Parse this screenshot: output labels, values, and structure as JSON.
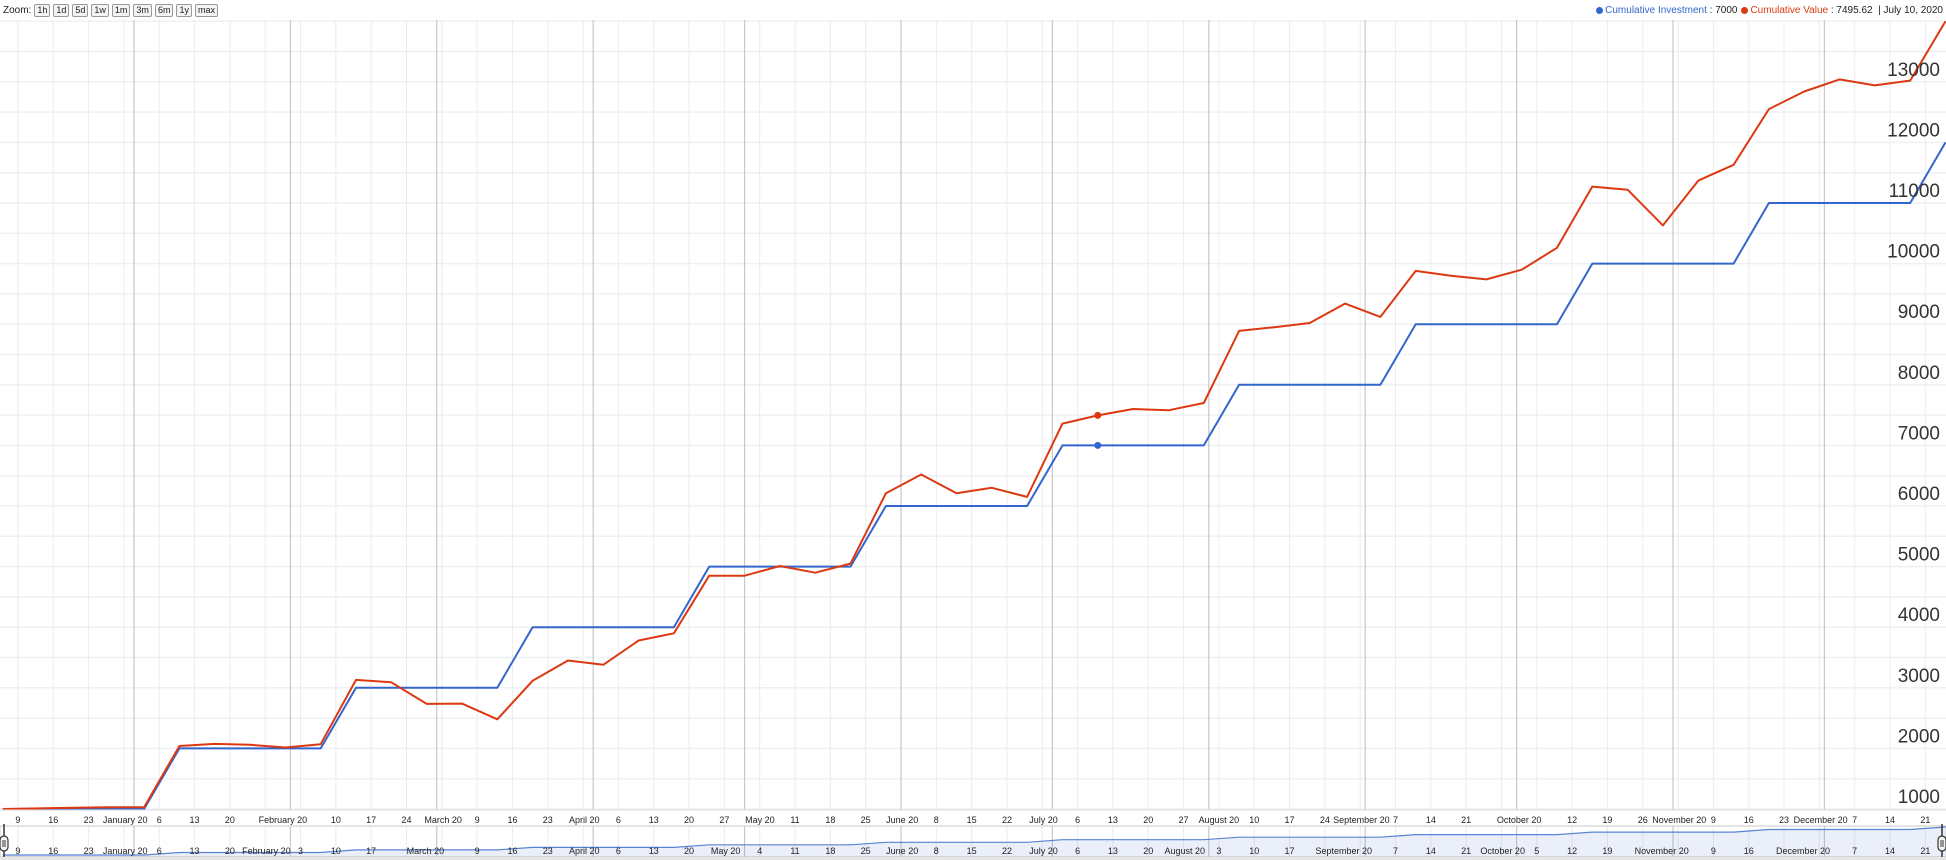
{
  "toolbar": {
    "zoom_label": "Zoom:",
    "zoom_buttons": [
      "1h",
      "1d",
      "5d",
      "1w",
      "1m",
      "3m",
      "6m",
      "1y",
      "max"
    ]
  },
  "legend": {
    "series": [
      {
        "name": "Cumulative Investment",
        "value": " : 7000",
        "color": "#3366cc"
      },
      {
        "name": "Cumulative Value",
        "value": " : 7495.62",
        "color": "#dc3912"
      }
    ],
    "date": "  | July 10, 2020"
  },
  "chart_data": {
    "type": "line",
    "title": "",
    "xlabel": "",
    "ylabel": "",
    "highlighted_date": "2020-07-10",
    "ylim": [
      1000,
      14000
    ],
    "grid": true,
    "y_ticks": [
      "1000",
      "2000",
      "3000",
      "4000",
      "5000",
      "6000",
      "7000",
      "8000",
      "9000",
      "10000",
      "11000",
      "12000",
      "13000"
    ],
    "x": [
      "2019-12-06",
      "2019-12-13",
      "2019-12-20",
      "2019-12-27",
      "2020-01-03",
      "2020-01-10",
      "2020-01-17",
      "2020-01-24",
      "2020-01-31",
      "2020-02-07",
      "2020-02-14",
      "2020-02-21",
      "2020-02-28",
      "2020-03-06",
      "2020-03-13",
      "2020-03-20",
      "2020-03-27",
      "2020-04-03",
      "2020-04-10",
      "2020-04-17",
      "2020-04-24",
      "2020-05-01",
      "2020-05-08",
      "2020-05-15",
      "2020-05-22",
      "2020-05-29",
      "2020-06-05",
      "2020-06-12",
      "2020-06-19",
      "2020-06-26",
      "2020-07-03",
      "2020-07-10",
      "2020-07-17",
      "2020-07-24",
      "2020-07-31",
      "2020-08-07",
      "2020-08-14",
      "2020-08-21",
      "2020-08-28",
      "2020-09-04",
      "2020-09-11",
      "2020-09-18",
      "2020-09-25",
      "2020-10-02",
      "2020-10-09",
      "2020-10-16",
      "2020-10-23",
      "2020-10-30",
      "2020-11-06",
      "2020-11-13",
      "2020-11-20",
      "2020-11-27",
      "2020-12-04",
      "2020-12-11",
      "2020-12-18",
      "2020-12-25"
    ],
    "series": [
      {
        "name": "Cumulative Investment",
        "color": "#3366cc",
        "values": [
          1000,
          1000,
          1000,
          1000,
          1000,
          2000,
          2000,
          2000,
          2000,
          2000,
          3000,
          3000,
          3000,
          3000,
          3000,
          4000,
          4000,
          4000,
          4000,
          4000,
          5000,
          5000,
          5000,
          5000,
          5000,
          6000,
          6000,
          6000,
          6000,
          6000,
          7000,
          7000,
          7000,
          7000,
          7000,
          8000,
          8000,
          8000,
          8000,
          8000,
          9000,
          9000,
          9000,
          9000,
          9000,
          10000,
          10000,
          10000,
          10000,
          10000,
          11000,
          11000,
          11000,
          11000,
          11000,
          12000
        ]
      },
      {
        "name": "Cumulative Value",
        "color": "#dc3912",
        "values": [
          1000,
          1010,
          1020,
          1030,
          1030,
          2040,
          2075,
          2060,
          2015,
          2070,
          3130,
          3090,
          2735,
          2740,
          2480,
          3115,
          3450,
          3380,
          3780,
          3900,
          4850,
          4850,
          5010,
          4900,
          5050,
          6210,
          6520,
          6210,
          6300,
          6150,
          7360,
          7495.62,
          7600,
          7580,
          7700,
          8890,
          8950,
          9020,
          9340,
          9120,
          9880,
          9800,
          9740,
          9900,
          10260,
          11270,
          11220,
          10630,
          11370,
          11630,
          12550,
          12840,
          13040,
          12940,
          13020,
          14000
        ]
      }
    ],
    "x_tick_labels": [
      {
        "date": "2019-12-09",
        "label": "9"
      },
      {
        "date": "2019-12-16",
        "label": "16"
      },
      {
        "date": "2019-12-23",
        "label": "23"
      },
      {
        "date": "2020-01-01",
        "label": "January 20",
        "major": true
      },
      {
        "date": "2020-01-06",
        "label": "6"
      },
      {
        "date": "2020-01-13",
        "label": "13"
      },
      {
        "date": "2020-01-20",
        "label": "20"
      },
      {
        "date": "2020-02-01",
        "label": "February 20",
        "major": true
      },
      {
        "date": "2020-02-10",
        "label": "10"
      },
      {
        "date": "2020-02-17",
        "label": "17"
      },
      {
        "date": "2020-02-24",
        "label": "24"
      },
      {
        "date": "2020-03-01",
        "label": "March 20",
        "major": true
      },
      {
        "date": "2020-03-09",
        "label": "9"
      },
      {
        "date": "2020-03-16",
        "label": "16"
      },
      {
        "date": "2020-03-23",
        "label": "23"
      },
      {
        "date": "2020-04-01",
        "label": "April 20",
        "major": true
      },
      {
        "date": "2020-04-06",
        "label": "6"
      },
      {
        "date": "2020-04-13",
        "label": "13"
      },
      {
        "date": "2020-04-20",
        "label": "20"
      },
      {
        "date": "2020-04-27",
        "label": "27"
      },
      {
        "date": "2020-05-01",
        "label": "May 20",
        "major": true
      },
      {
        "date": "2020-05-11",
        "label": "11"
      },
      {
        "date": "2020-05-18",
        "label": "18"
      },
      {
        "date": "2020-05-25",
        "label": "25"
      },
      {
        "date": "2020-06-01",
        "label": "June 20",
        "major": true
      },
      {
        "date": "2020-06-08",
        "label": "8"
      },
      {
        "date": "2020-06-15",
        "label": "15"
      },
      {
        "date": "2020-06-22",
        "label": "22"
      },
      {
        "date": "2020-07-01",
        "label": "July 20",
        "major": true
      },
      {
        "date": "2020-07-06",
        "label": "6"
      },
      {
        "date": "2020-07-13",
        "label": "13"
      },
      {
        "date": "2020-07-20",
        "label": "20"
      },
      {
        "date": "2020-07-27",
        "label": "27"
      },
      {
        "date": "2020-08-01",
        "label": "August 20",
        "major": true
      },
      {
        "date": "2020-08-10",
        "label": "10"
      },
      {
        "date": "2020-08-17",
        "label": "17"
      },
      {
        "date": "2020-08-24",
        "label": "24"
      },
      {
        "date": "2020-09-01",
        "label": "September 20",
        "major": true
      },
      {
        "date": "2020-09-07",
        "label": "7"
      },
      {
        "date": "2020-09-14",
        "label": "14"
      },
      {
        "date": "2020-09-21",
        "label": "21"
      },
      {
        "date": "2020-10-01",
        "label": "October 20",
        "major": true
      },
      {
        "date": "2020-10-12",
        "label": "12"
      },
      {
        "date": "2020-10-19",
        "label": "19"
      },
      {
        "date": "2020-10-26",
        "label": "26"
      },
      {
        "date": "2020-11-01",
        "label": "November 20",
        "major": true
      },
      {
        "date": "2020-11-09",
        "label": "9"
      },
      {
        "date": "2020-11-16",
        "label": "16"
      },
      {
        "date": "2020-11-23",
        "label": "23"
      },
      {
        "date": "2020-12-01",
        "label": "December 20",
        "major": true
      },
      {
        "date": "2020-12-07",
        "label": "7"
      },
      {
        "date": "2020-12-14",
        "label": "14"
      },
      {
        "date": "2020-12-21",
        "label": "21"
      }
    ],
    "navigator_tick_labels": [
      {
        "date": "2019-12-09",
        "label": "9"
      },
      {
        "date": "2019-12-16",
        "label": "16"
      },
      {
        "date": "2019-12-23",
        "label": "23"
      },
      {
        "date": "2020-01-01",
        "label": "January 20",
        "major": true
      },
      {
        "date": "2020-01-06",
        "label": "6"
      },
      {
        "date": "2020-01-13",
        "label": "13"
      },
      {
        "date": "2020-01-20",
        "label": "20"
      },
      {
        "date": "2020-02-01",
        "label": "February 20",
        "major": true
      },
      {
        "date": "2020-02-03",
        "label": "3"
      },
      {
        "date": "2020-02-10",
        "label": "10"
      },
      {
        "date": "2020-02-17",
        "label": "17"
      },
      {
        "date": "2020-03-01",
        "label": "March 20",
        "major": true
      },
      {
        "date": "2020-03-09",
        "label": "9"
      },
      {
        "date": "2020-03-16",
        "label": "16"
      },
      {
        "date": "2020-03-23",
        "label": "23"
      },
      {
        "date": "2020-04-01",
        "label": "April 20",
        "major": true
      },
      {
        "date": "2020-04-06",
        "label": "6"
      },
      {
        "date": "2020-04-13",
        "label": "13"
      },
      {
        "date": "2020-04-20",
        "label": "20"
      },
      {
        "date": "2020-05-01",
        "label": "May 20",
        "major": true
      },
      {
        "date": "2020-05-04",
        "label": "4"
      },
      {
        "date": "2020-05-11",
        "label": "11"
      },
      {
        "date": "2020-05-18",
        "label": "18"
      },
      {
        "date": "2020-05-25",
        "label": "25"
      },
      {
        "date": "2020-06-01",
        "label": "June 20",
        "major": true
      },
      {
        "date": "2020-06-08",
        "label": "8"
      },
      {
        "date": "2020-06-15",
        "label": "15"
      },
      {
        "date": "2020-06-22",
        "label": "22"
      },
      {
        "date": "2020-07-01",
        "label": "July 20",
        "major": true
      },
      {
        "date": "2020-07-06",
        "label": "6"
      },
      {
        "date": "2020-07-13",
        "label": "13"
      },
      {
        "date": "2020-07-20",
        "label": "20"
      },
      {
        "date": "2020-08-01",
        "label": "August 20",
        "major": true
      },
      {
        "date": "2020-08-03",
        "label": "3"
      },
      {
        "date": "2020-08-10",
        "label": "10"
      },
      {
        "date": "2020-08-17",
        "label": "17"
      },
      {
        "date": "2020-09-01",
        "label": "September 20",
        "major": true
      },
      {
        "date": "2020-09-07",
        "label": "7"
      },
      {
        "date": "2020-09-14",
        "label": "14"
      },
      {
        "date": "2020-09-21",
        "label": "21"
      },
      {
        "date": "2020-10-01",
        "label": "October 20",
        "major": true
      },
      {
        "date": "2020-10-05",
        "label": "5"
      },
      {
        "date": "2020-10-12",
        "label": "12"
      },
      {
        "date": "2020-10-19",
        "label": "19"
      },
      {
        "date": "2020-11-01",
        "label": "November 20",
        "major": true
      },
      {
        "date": "2020-11-09",
        "label": "9"
      },
      {
        "date": "2020-11-16",
        "label": "16"
      },
      {
        "date": "2020-12-01",
        "label": "December 20",
        "major": true
      },
      {
        "date": "2020-12-07",
        "label": "7"
      },
      {
        "date": "2020-12-14",
        "label": "14"
      },
      {
        "date": "2020-12-21",
        "label": "21"
      }
    ]
  }
}
